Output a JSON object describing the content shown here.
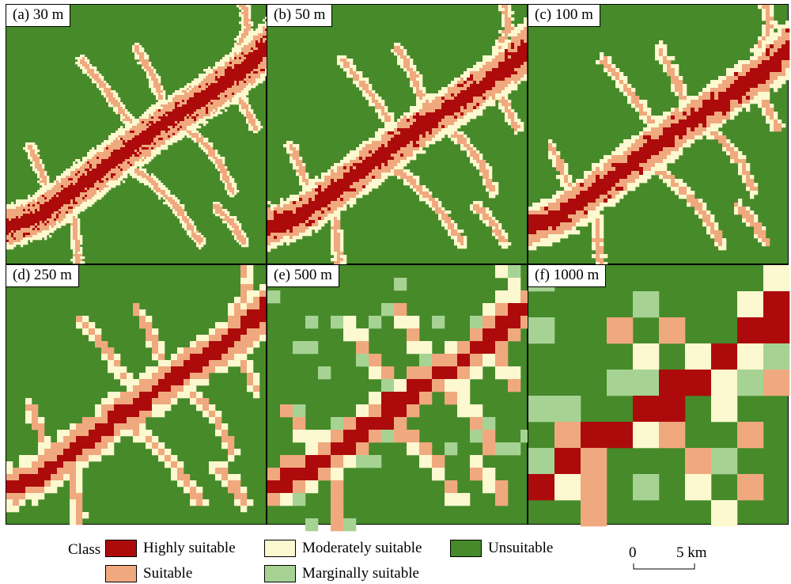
{
  "panels": [
    {
      "label": "(a) 30 m"
    },
    {
      "label": "(b) 50 m"
    },
    {
      "label": "(c) 100 m"
    },
    {
      "label": "(d) 250 m"
    },
    {
      "label": "(e) 500 m"
    },
    {
      "label": "(f) 1000 m"
    }
  ],
  "legend": {
    "title": "Class",
    "items": [
      {
        "label": "Highly suitable",
        "color": "#ad0b0b"
      },
      {
        "label": "Suitable",
        "color": "#f0a97e"
      },
      {
        "label": "Moderately suitable",
        "color": "#fcf8cf"
      },
      {
        "label": "Marginally suitable",
        "color": "#a6d394"
      },
      {
        "label": "Unsuitable",
        "color": "#468a2a"
      }
    ]
  },
  "scale_bar": {
    "start": "0",
    "end": "5 km"
  }
}
